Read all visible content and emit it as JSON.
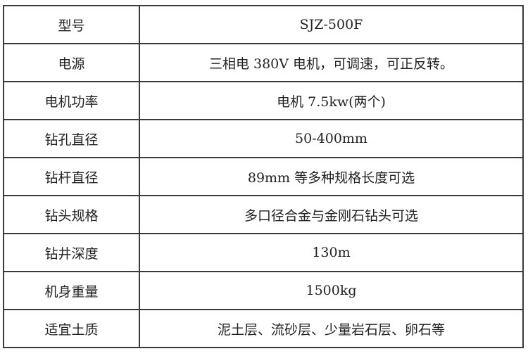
{
  "rows": [
    {
      "label": "型号",
      "value": "SJZ-500F"
    },
    {
      "label": "电源",
      "value": "三相电 380V 电机，可调速，可正反转。"
    },
    {
      "label": "电机功率",
      "value": "电机 7.5kw(两个)"
    },
    {
      "label": "钻孔直径",
      "value": "50-400mm"
    },
    {
      "label": "钻杆直径",
      "value": "89mm 等多种规格长度可选"
    },
    {
      "label": "钻头规格",
      "value": "多口径合金与金刚石钻头可选"
    },
    {
      "label": "钻井深度",
      "value": "130m"
    },
    {
      "label": "机身重量",
      "value": "1500kg"
    },
    {
      "label": "适宜土质",
      "value": "泥土层、流砂层、少量岩石层、卵石等"
    }
  ]
}
